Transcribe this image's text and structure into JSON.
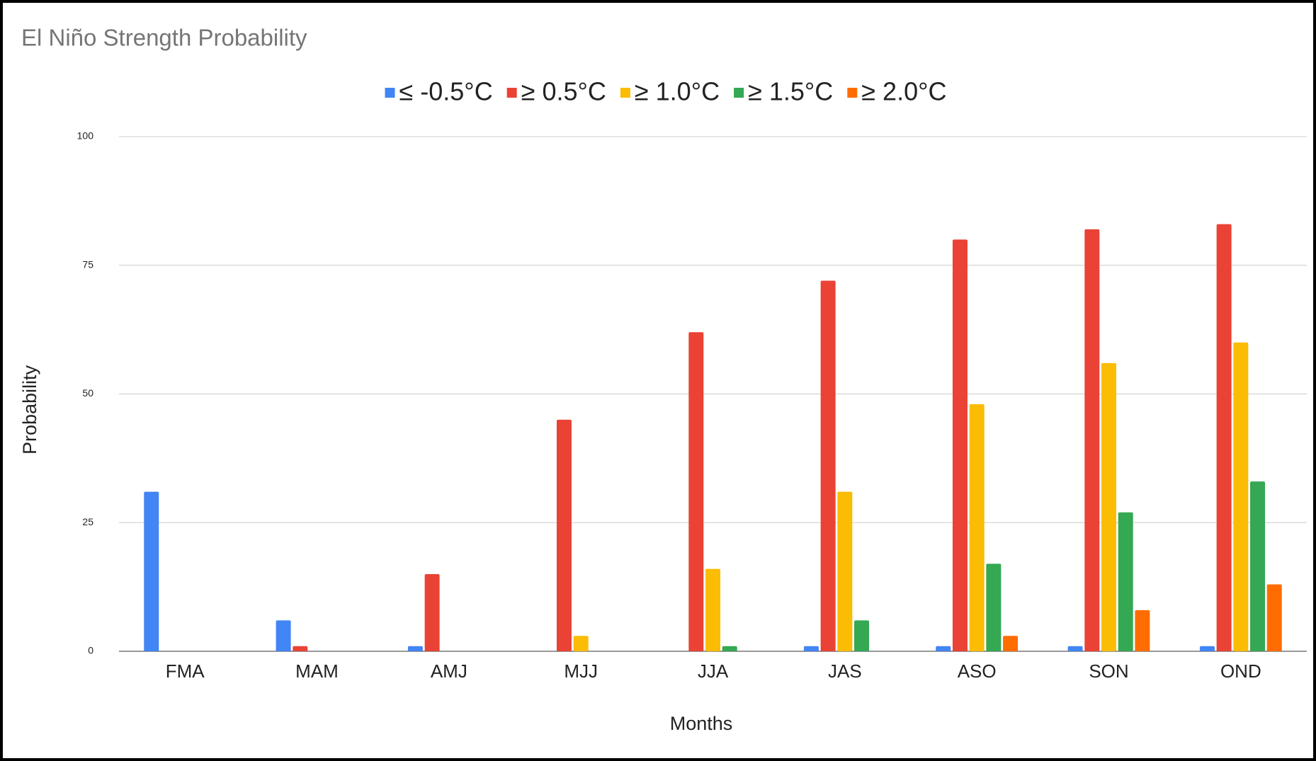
{
  "chart_data": {
    "type": "bar",
    "title": "El Niño Strength Probability",
    "x_label": "Months",
    "y_label": "Probability",
    "categories": [
      "FMA",
      "MAM",
      "AMJ",
      "MJJ",
      "JJA",
      "JAS",
      "ASO",
      "SON",
      "OND"
    ],
    "series": [
      {
        "name": "≤ -0.5°C",
        "color": "#4285f4",
        "values": [
          31,
          6,
          1,
          0,
          0,
          1,
          1,
          1,
          1
        ]
      },
      {
        "name": "≥ 0.5°C",
        "color": "#ea4335",
        "values": [
          0,
          1,
          15,
          45,
          62,
          72,
          80,
          82,
          83
        ]
      },
      {
        "name": "≥ 1.0°C",
        "color": "#fbbc04",
        "values": [
          0,
          0,
          0,
          3,
          16,
          31,
          48,
          56,
          60
        ]
      },
      {
        "name": "≥ 1.5°C",
        "color": "#34a853",
        "values": [
          0,
          0,
          0,
          0,
          1,
          6,
          17,
          27,
          33
        ]
      },
      {
        "name": "≥ 2.0°C",
        "color": "#ff6d01",
        "values": [
          0,
          0,
          0,
          0,
          0,
          0,
          3,
          8,
          13
        ]
      }
    ],
    "ylim": [
      0,
      100
    ],
    "yticks": [
      0,
      25,
      50,
      75,
      100
    ],
    "grid": true,
    "legend": "top"
  }
}
